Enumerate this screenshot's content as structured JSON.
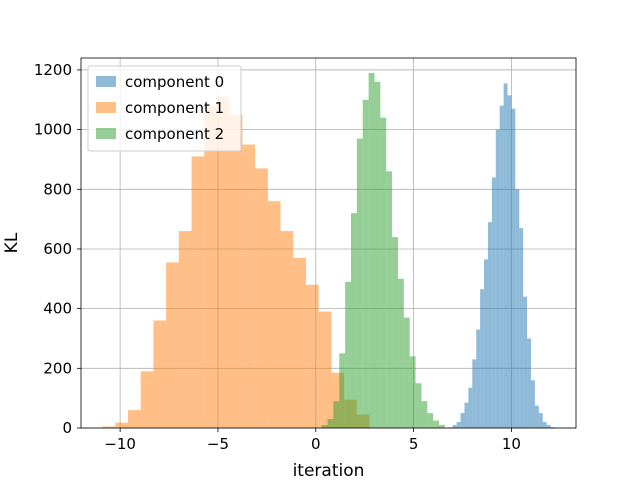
{
  "chart_data": {
    "type": "histogram",
    "xlabel": "iteration",
    "ylabel": "KL",
    "xlim": [
      -12,
      13.3
    ],
    "ylim": [
      0,
      1240
    ],
    "xticks": [
      -10,
      -5,
      0,
      5,
      10
    ],
    "xtick_labels": [
      "−10",
      "−5",
      "0",
      "5",
      "10"
    ],
    "yticks": [
      0,
      200,
      400,
      600,
      800,
      1000,
      1200
    ],
    "grid": true,
    "legend_position": "top-left",
    "series": [
      {
        "name": "component 0",
        "color": "#1f77b4",
        "opacity": 0.5,
        "bin_edges": [
          6.8,
          7.0,
          7.2,
          7.4,
          7.6,
          7.8,
          8.0,
          8.2,
          8.4,
          8.6,
          8.8,
          9.0,
          9.2,
          9.4,
          9.6,
          9.8,
          10.0,
          10.2,
          10.4,
          10.6,
          10.8,
          11.0,
          11.2,
          11.4,
          11.6,
          11.8,
          12.0,
          12.2
        ],
        "counts": [
          2,
          10,
          20,
          50,
          85,
          135,
          230,
          330,
          465,
          565,
          690,
          840,
          1000,
          1080,
          1155,
          1115,
          1070,
          800,
          670,
          440,
          300,
          160,
          75,
          50,
          20,
          10,
          3
        ]
      },
      {
        "name": "component 1",
        "color": "#ff7f0e",
        "opacity": 0.5,
        "bin_edges": [
          -10.9,
          -10.25,
          -9.6,
          -8.95,
          -8.3,
          -7.65,
          -7.0,
          -6.35,
          -5.7,
          -5.05,
          -4.4,
          -3.75,
          -3.1,
          -2.45,
          -1.8,
          -1.15,
          -0.5,
          0.15,
          0.8,
          1.45,
          2.1,
          2.75
        ],
        "counts": [
          5,
          18,
          60,
          190,
          360,
          555,
          660,
          910,
          1080,
          1110,
          1050,
          950,
          870,
          760,
          660,
          570,
          480,
          390,
          185,
          95,
          45
        ]
      },
      {
        "name": "component 2",
        "color": "#2ca02c",
        "opacity": 0.5,
        "bin_edges": [
          0.3,
          0.6,
          0.9,
          1.2,
          1.5,
          1.8,
          2.1,
          2.4,
          2.7,
          3.0,
          3.3,
          3.6,
          3.9,
          4.2,
          4.5,
          4.8,
          5.1,
          5.4,
          5.7,
          6.0,
          6.3,
          6.6
        ],
        "counts": [
          10,
          30,
          90,
          250,
          490,
          720,
          970,
          1100,
          1190,
          1160,
          1040,
          860,
          640,
          500,
          370,
          240,
          150,
          90,
          50,
          25,
          10
        ]
      }
    ]
  }
}
